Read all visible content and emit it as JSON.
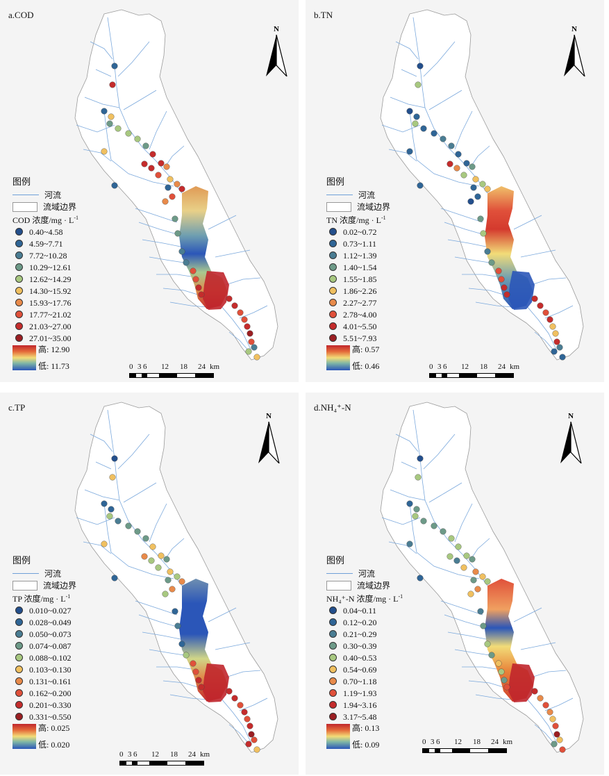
{
  "legend_common": {
    "title": "图例",
    "river": "河流",
    "boundary": "流域边界"
  },
  "scale": {
    "ticks": [
      "0",
      "3",
      "6",
      "12",
      "18",
      "24"
    ],
    "unit": "km"
  },
  "north_label": "N",
  "panels": [
    {
      "title": "a.COD",
      "conc_title": "COD 浓度/mg · L",
      "conc_sup": "-1",
      "classes": [
        "0.40~4.58",
        "4.59~7.71",
        "7.72~10.28",
        "10.29~12.61",
        "12.62~14.29",
        "14.30~15.92",
        "15.93~17.76",
        "17.77~21.02",
        "21.03~27.00",
        "27.01~35.00"
      ],
      "high": "高: 12.90",
      "low": "低: 11.73"
    },
    {
      "title": "b.TN",
      "conc_title": "TN 浓度/mg · L",
      "conc_sup": "-1",
      "classes": [
        "0.02~0.72",
        "0.73~1.11",
        "1.12~1.39",
        "1.40~1.54",
        "1.55~1.85",
        "1.86~2.26",
        "2.27~2.77",
        "2.78~4.00",
        "4.01~5.50",
        "5.51~7.93"
      ],
      "high": "高: 0.57",
      "low": "低: 0.46"
    },
    {
      "title": "c.TP",
      "conc_title": "TP 浓度/mg · L",
      "conc_sup": "-1",
      "classes": [
        "0.010~0.027",
        "0.028~0.049",
        "0.050~0.073",
        "0.074~0.087",
        "0.088~0.102",
        "0.103~0.130",
        "0.131~0.161",
        "0.162~0.200",
        "0.201~0.330",
        "0.331~0.550"
      ],
      "high": "高: 0.025",
      "low": "低: 0.020"
    },
    {
      "title": "d.NH₄⁺-N",
      "conc_title": "NH₄⁺-N 浓度/mg · L",
      "conc_sup": "-1",
      "classes": [
        "0.04~0.11",
        "0.12~0.20",
        "0.21~0.29",
        "0.30~0.39",
        "0.40~0.53",
        "0.54~0.69",
        "0.70~1.18",
        "1.19~1.93",
        "1.94~3.16",
        "3.17~5.48"
      ],
      "high": "高: 0.13",
      "low": "低: 0.09"
    }
  ],
  "class_colors": [
    "#234f8c",
    "#2f6596",
    "#4a7d93",
    "#6d9a88",
    "#a8c880",
    "#f0c060",
    "#e88a4a",
    "#e0503a",
    "#c42c2c",
    "#9a1e22"
  ]
}
